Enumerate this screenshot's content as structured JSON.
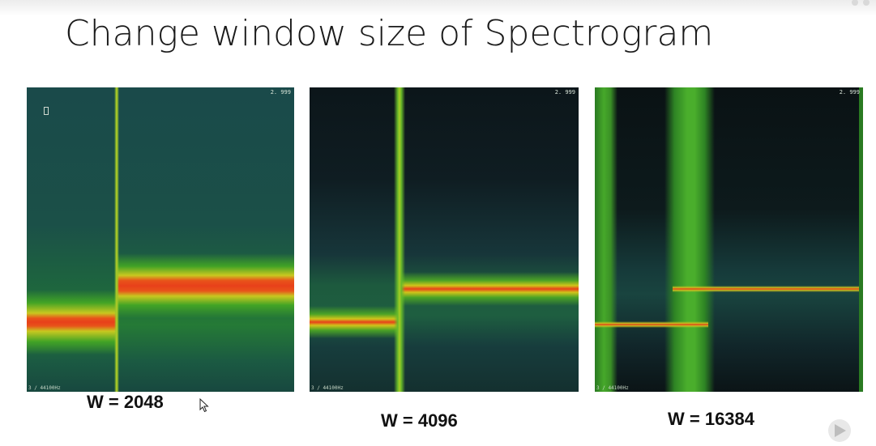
{
  "slide": {
    "title": "Change window size of Spectrogram"
  },
  "spectrograms": [
    {
      "caption": "W = 2048",
      "time_label": "2. 999",
      "freq_label": "3 / 44100Hz"
    },
    {
      "caption": "W = 4096",
      "time_label": "2. 999",
      "freq_label": "3 / 44100Hz"
    },
    {
      "caption": "W = 16384",
      "time_label": "2. 999",
      "freq_label": "3 / 44100Hz"
    }
  ],
  "colors": {
    "background": "#16353a",
    "dark": "#0c161a",
    "green": "#3aa22a",
    "yellow": "#d8d21a",
    "red": "#e83a12"
  },
  "icons": [
    "mouse-pointer-icon",
    "play-control-icon"
  ]
}
